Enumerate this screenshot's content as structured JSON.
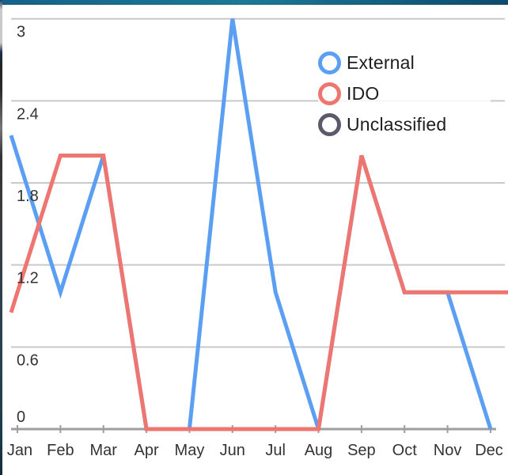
{
  "chart_data": {
    "type": "line",
    "categories": [
      "Jan",
      "Feb",
      "Mar",
      "Apr",
      "May",
      "Jun",
      "Jul",
      "Aug",
      "Sep",
      "Oct",
      "Nov",
      "Dec"
    ],
    "series": [
      {
        "name": "External",
        "color": "#5B9FF3",
        "values": [
          2,
          1,
          2,
          0,
          0,
          3,
          1,
          0,
          2,
          1,
          1,
          0
        ],
        "extends_left": true,
        "extends_right": false
      },
      {
        "name": "IDO",
        "color": "#EE7570",
        "values": [
          1,
          2,
          2,
          0,
          0,
          0,
          0,
          0,
          2,
          1,
          1,
          1
        ],
        "extends_left": true,
        "extends_right": true
      },
      {
        "name": "Unclassified",
        "color": "#5E5969",
        "values": [
          null,
          null,
          null,
          null,
          null,
          null,
          null,
          null,
          null,
          null,
          null,
          null
        ],
        "extends_left": false,
        "extends_right": false
      }
    ],
    "title": "",
    "xlabel": "",
    "ylabel": "",
    "ylim": [
      0,
      3
    ],
    "ytick_values": [
      0,
      0.6,
      1.2,
      1.8,
      2.4,
      3
    ],
    "ytick_labels": [
      "0",
      "0.6",
      "1.2",
      "1.8",
      "2.4",
      "3"
    ],
    "grid": "on",
    "legend_position": "top-right",
    "note": "External series is hidden behind IDO from Aug through Nov (identical values); Unclassified has no plotted points"
  },
  "colors": {
    "gridline": "#c9c9c9",
    "axis_baseline": "#9e9e9e",
    "tick": "#9e9e9e",
    "axis_text": "#333333",
    "topbar_left": "#15618a",
    "topbar_mid": "#1b7a96",
    "topbar_right": "#0e4a6e"
  }
}
